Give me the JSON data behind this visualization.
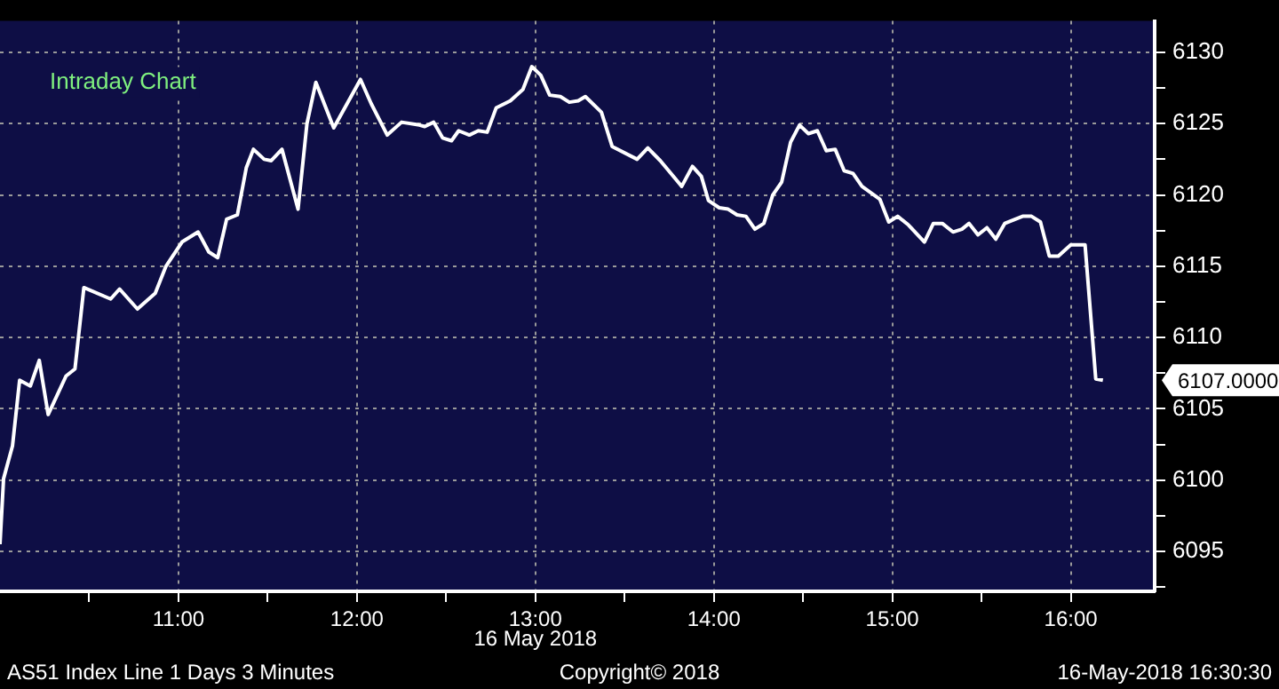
{
  "chart_data": {
    "type": "line",
    "title": "Intraday Chart",
    "x": [
      10.0,
      10.02,
      10.07,
      10.11,
      10.17,
      10.22,
      10.27,
      10.37,
      10.42,
      10.47,
      10.62,
      10.67,
      10.77,
      10.87,
      10.93,
      11.02,
      11.11,
      11.17,
      11.22,
      11.27,
      11.33,
      11.38,
      11.42,
      11.48,
      11.52,
      11.58,
      11.67,
      11.72,
      11.77,
      11.87,
      12.02,
      12.08,
      12.17,
      12.25,
      12.35,
      12.38,
      12.43,
      12.48,
      12.53,
      12.57,
      12.63,
      12.68,
      12.73,
      12.78,
      12.86,
      12.93,
      12.98,
      13.03,
      13.08,
      13.14,
      13.19,
      13.24,
      13.28,
      13.37,
      13.43,
      13.57,
      13.63,
      13.7,
      13.82,
      13.88,
      13.93,
      13.97,
      14.03,
      14.08,
      14.13,
      14.18,
      14.23,
      14.28,
      14.33,
      14.38,
      14.43,
      14.48,
      14.53,
      14.58,
      14.63,
      14.68,
      14.73,
      14.78,
      14.83,
      14.93,
      14.98,
      15.03,
      15.09,
      15.18,
      15.23,
      15.28,
      15.34,
      15.39,
      15.43,
      15.48,
      15.53,
      15.58,
      15.63,
      15.73,
      15.78,
      15.83,
      15.88,
      15.93,
      16.0,
      16.08,
      16.14,
      16.18
    ],
    "series": [
      {
        "color": "#ffffff",
        "values": [
          6095.5,
          6100.1,
          6102.4,
          6107.0,
          6106.6,
          6108.4,
          6104.6,
          6107.3,
          6107.8,
          6113.5,
          6112.7,
          6113.4,
          6112.0,
          6113.1,
          6115.0,
          6116.7,
          6117.4,
          6116.0,
          6115.6,
          6118.3,
          6118.6,
          6121.9,
          6123.2,
          6122.5,
          6122.4,
          6123.2,
          6119.0,
          6125.0,
          6127.9,
          6124.7,
          6128.1,
          6126.4,
          6124.2,
          6125.1,
          6124.9,
          6124.8,
          6125.1,
          6124.0,
          6123.8,
          6124.5,
          6124.2,
          6124.5,
          6124.4,
          6126.1,
          6126.6,
          6127.4,
          6129.0,
          6128.4,
          6127.0,
          6126.9,
          6126.5,
          6126.6,
          6126.9,
          6125.8,
          6123.4,
          6122.5,
          6123.3,
          6122.4,
          6120.6,
          6122.0,
          6121.3,
          6119.6,
          6119.1,
          6119.0,
          6118.6,
          6118.5,
          6117.6,
          6118.0,
          6120.0,
          6120.9,
          6123.7,
          6124.9,
          6124.3,
          6124.5,
          6123.1,
          6123.2,
          6121.7,
          6121.5,
          6120.6,
          6119.7,
          6118.1,
          6118.5,
          6117.9,
          6116.7,
          6118.0,
          6118.0,
          6117.4,
          6117.6,
          6118.0,
          6117.2,
          6117.7,
          6116.9,
          6118.0,
          6118.5,
          6118.5,
          6118.1,
          6115.7,
          6115.7,
          6116.5,
          6116.5,
          6107.1,
          6107.0
        ]
      }
    ],
    "xlim": [
      10.0,
      16.47
    ],
    "xticks": [
      {
        "value": 10.5,
        "label": null
      },
      {
        "value": 11,
        "label": "11:00"
      },
      {
        "value": 11.5,
        "label": null
      },
      {
        "value": 12,
        "label": "12:00"
      },
      {
        "value": 12.5,
        "label": null
      },
      {
        "value": 13,
        "label": "13:00"
      },
      {
        "value": 13.5,
        "label": null
      },
      {
        "value": 14,
        "label": "14:00"
      },
      {
        "value": 14.5,
        "label": null
      },
      {
        "value": 15,
        "label": "15:00"
      },
      {
        "value": 15.5,
        "label": null
      },
      {
        "value": 16,
        "label": "16:00"
      }
    ],
    "ylim": [
      6092.2,
      6132.2
    ],
    "yticks": [
      {
        "value": 6092.5,
        "label": null
      },
      6095,
      {
        "value": 6097.5,
        "label": null
      },
      6100,
      {
        "value": 6102.5,
        "label": null
      },
      6105,
      {
        "value": 6107.5,
        "label": null
      },
      6110,
      {
        "value": 6112.5,
        "label": null
      },
      6115,
      {
        "value": 6117.5,
        "label": null
      },
      6120,
      {
        "value": 6122.5,
        "label": null
      },
      6125,
      {
        "value": 6127.5,
        "label": null
      },
      6130
    ],
    "grid": true,
    "legend": false,
    "marker": "none",
    "line_style": "solid",
    "annotations": [
      "6107.0000",
      "16 May 2018",
      "AS51 Index Line 1 Days 3 Minutes",
      "Copyright© 2018",
      "16-May-2018 16:30:30"
    ]
  }
}
